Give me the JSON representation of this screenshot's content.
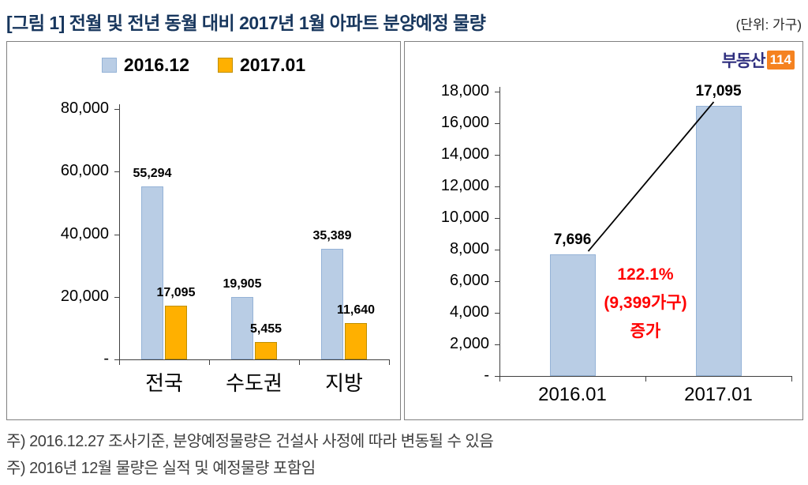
{
  "header": {
    "title": "[그림 1] 전월 및 전년 동월 대비 2017년 1월 아파트 분양예정 물량",
    "unit": "(단위: 가구)"
  },
  "brand": {
    "text": "부동산",
    "number": "114"
  },
  "colors": {
    "title_navy": "#17365D",
    "bar_blue": "#B9CDE5",
    "bar_orange": "#FFB000",
    "annotation_red": "#FF0000"
  },
  "chart_data": [
    {
      "type": "bar",
      "categories": [
        "전국",
        "수도권",
        "지방"
      ],
      "series": [
        {
          "name": "2016.12",
          "values": [
            55294,
            19905,
            35389
          ],
          "color": "#B9CDE5",
          "border": "#95B3D7"
        },
        {
          "name": "2017.01",
          "values": [
            17095,
            5455,
            11640
          ],
          "color": "#FFB000",
          "border": "#BF8F00"
        }
      ],
      "ylim": [
        0,
        80000
      ],
      "ytick_step": 20000,
      "zero_tick_label": "-",
      "legend_position": "top",
      "grid": false
    },
    {
      "type": "bar",
      "categories": [
        "2016.01",
        "2017.01"
      ],
      "series": [
        {
          "name": "",
          "values": [
            7696,
            17095
          ],
          "color": "#B9CDE5",
          "border": "#95B3D7"
        }
      ],
      "ylim": [
        0,
        18000
      ],
      "ytick_step": 2000,
      "zero_tick_label": "-",
      "grid": false,
      "trend_line": true,
      "annotation": {
        "lines": [
          "122.1%",
          "(9,399가구)",
          "증가"
        ],
        "color": "#FF0000"
      }
    }
  ],
  "footnotes": [
    "주) 2016.12.27 조사기준, 분양예정물량은 건설사 사정에 따라 변동될 수 있음",
    "주) 2016년 12월 물량은 실적 및 예정물량 포함임"
  ]
}
